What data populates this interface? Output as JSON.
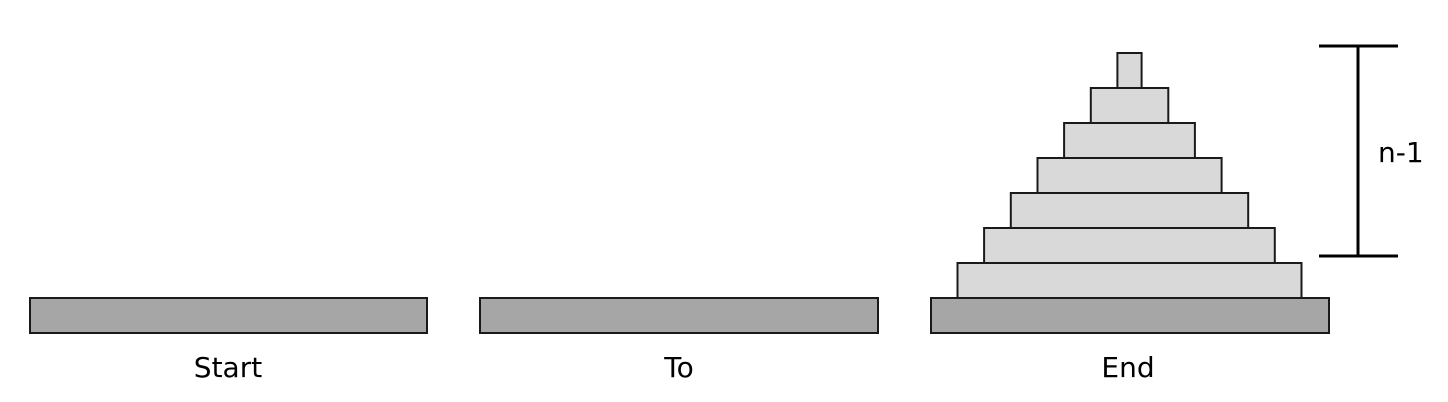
{
  "pegs": [
    {
      "id": "start",
      "label": "Start",
      "disks": 0
    },
    {
      "id": "to",
      "label": "To",
      "disks": 0
    },
    {
      "id": "end",
      "label": "End",
      "disks": 7
    }
  ],
  "bracket": {
    "label": "n-1"
  },
  "colors": {
    "base": "#a6a6a6",
    "disk": "#d9d9d9",
    "outline": "#1a1a1a"
  }
}
